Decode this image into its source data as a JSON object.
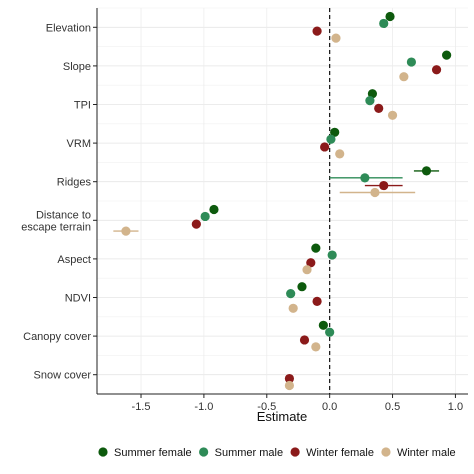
{
  "chart_data": {
    "type": "scatter",
    "xlabel": "Estimate",
    "ylabel": "",
    "xlim": [
      -1.85,
      1.1
    ],
    "x_ticks": [
      "-1.5",
      "-1.0",
      "-0.5",
      "0.0",
      "0.5",
      "1.0"
    ],
    "x_tick_values": [
      -1.5,
      -1.0,
      -0.5,
      0.0,
      0.5,
      1.0
    ],
    "reference_line_x": 0,
    "reference_line_style": "dashed",
    "grid": true,
    "legend_position": "bottom",
    "categories": [
      {
        "key": "elevation",
        "lines": [
          "Elevation"
        ]
      },
      {
        "key": "slope",
        "lines": [
          "Slope"
        ]
      },
      {
        "key": "tpi",
        "lines": [
          "TPI"
        ]
      },
      {
        "key": "vrm",
        "lines": [
          "VRM"
        ]
      },
      {
        "key": "ridges",
        "lines": [
          "Ridges"
        ]
      },
      {
        "key": "distance",
        "lines": [
          "Distance to",
          "escape terrain"
        ]
      },
      {
        "key": "aspect",
        "lines": [
          "Aspect"
        ]
      },
      {
        "key": "ndvi",
        "lines": [
          "NDVI"
        ]
      },
      {
        "key": "canopy",
        "lines": [
          "Canopy cover"
        ]
      },
      {
        "key": "snow",
        "lines": [
          "Snow cover"
        ]
      }
    ],
    "series": [
      {
        "name": "Summer female",
        "color": "#0d5a0d",
        "points": [
          {
            "category": "elevation",
            "x": 0.48
          },
          {
            "category": "slope",
            "x": 0.93
          },
          {
            "category": "tpi",
            "x": 0.34
          },
          {
            "category": "vrm",
            "x": 0.04
          },
          {
            "category": "ridges",
            "x": 0.77,
            "ci": [
              0.67,
              0.87
            ]
          },
          {
            "category": "distance",
            "x": -0.92
          },
          {
            "category": "aspect",
            "x": -0.11
          },
          {
            "category": "ndvi",
            "x": -0.22
          },
          {
            "category": "canopy",
            "x": -0.05
          },
          {
            "category": null,
            "x": null
          }
        ]
      },
      {
        "name": "Summer male",
        "color": "#2e8b57",
        "points": [
          {
            "category": "elevation",
            "x": 0.43
          },
          {
            "category": "slope",
            "x": 0.65
          },
          {
            "category": "tpi",
            "x": 0.32
          },
          {
            "category": "vrm",
            "x": 0.01
          },
          {
            "category": "ridges",
            "x": 0.28,
            "ci": [
              0.0,
              0.58
            ]
          },
          {
            "category": "distance",
            "x": -0.99
          },
          {
            "category": "aspect",
            "x": 0.02
          },
          {
            "category": "ndvi",
            "x": -0.31
          },
          {
            "category": "canopy",
            "x": 0.0
          },
          {
            "category": null,
            "x": null
          }
        ]
      },
      {
        "name": "Winter female",
        "color": "#8b1a1a",
        "points": [
          {
            "category": "elevation",
            "x": -0.1
          },
          {
            "category": "slope",
            "x": 0.85
          },
          {
            "category": "tpi",
            "x": 0.39
          },
          {
            "category": "vrm",
            "x": -0.04
          },
          {
            "category": "ridges",
            "x": 0.43,
            "ci": [
              0.28,
              0.58
            ]
          },
          {
            "category": "distance",
            "x": -1.06
          },
          {
            "category": "aspect",
            "x": -0.15
          },
          {
            "category": "ndvi",
            "x": -0.1
          },
          {
            "category": "canopy",
            "x": -0.2
          },
          {
            "category": "snow",
            "x": -0.32
          }
        ]
      },
      {
        "name": "Winter female",
        "color": "#8b1a1a",
        "points": []
      },
      {
        "name": "Winter male",
        "color": "#d2b48c",
        "points": [
          {
            "category": "elevation",
            "x": 0.05
          },
          {
            "category": "slope",
            "x": 0.59
          },
          {
            "category": "tpi",
            "x": 0.5
          },
          {
            "category": "vrm",
            "x": 0.08
          },
          {
            "category": "ridges",
            "x": 0.36,
            "ci": [
              0.08,
              0.68
            ]
          },
          {
            "category": "distance",
            "x": -1.62,
            "ci": [
              -1.72,
              -1.52
            ]
          },
          {
            "category": "aspect",
            "x": -0.18
          },
          {
            "category": "ndvi",
            "x": -0.29
          },
          {
            "category": "canopy",
            "x": -0.11
          },
          {
            "category": "snow",
            "x": -0.32
          }
        ]
      }
    ]
  }
}
